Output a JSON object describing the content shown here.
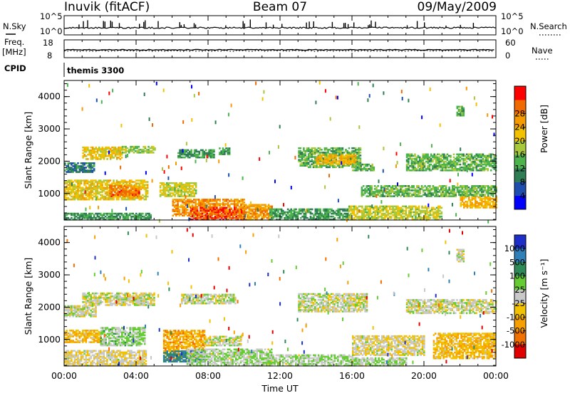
{
  "header": {
    "station": "Inuvik (fitACF)",
    "beam": "Beam 07",
    "date": "09/May/2009"
  },
  "strips": {
    "nsky_label": "N.Sky",
    "nsky_max": "10^5",
    "nsky_min": "10^0",
    "nsearch_label": "N.Search",
    "nsearch_max": "10^5",
    "nsearch_min": "10^0",
    "freq_label": "Freq.",
    "freq_unit": "[MHz]",
    "freq_max": "18",
    "freq_min": "8",
    "nave_label": "Nave",
    "nave_max": "60",
    "nave_min": "0",
    "cpid_label": "CPID",
    "cpid_value": "themis 3300"
  },
  "panels": {
    "power": {
      "ylabel": "Slant Range [km]",
      "yticks": [
        "1000",
        "2000",
        "3000",
        "4000"
      ],
      "colorbar_label": "Power [dB]",
      "colorbar_ticks": [
        "4",
        "8",
        "12",
        "16",
        "20",
        "24",
        "28"
      ],
      "colors": [
        "#0000ff",
        "#1f4fae",
        "#2e7d54",
        "#4db34d",
        "#a8c83c",
        "#f2c200",
        "#f59a00",
        "#f06a00",
        "#ff0000"
      ]
    },
    "velocity": {
      "ylabel": "Slant Range [km]",
      "yticks": [
        "1000",
        "2000",
        "3000",
        "4000"
      ],
      "colorbar_label": "Velocity [m s⁻¹]",
      "colorbar_ticks": [
        "1000",
        "500",
        "100",
        "25",
        "-25",
        "-100",
        "-500",
        "-1000"
      ],
      "colors": [
        "#1e2ec8",
        "#2f7fb8",
        "#2e8b57",
        "#66cc33",
        "#c8c8c8",
        "#f2c200",
        "#f5a000",
        "#f07000",
        "#e00000"
      ]
    }
  },
  "xaxis": {
    "label": "Time UT",
    "ticks": [
      "00:00",
      "04:00",
      "08:00",
      "12:00",
      "16:00",
      "20:00",
      "00:00"
    ]
  },
  "chart_data": [
    {
      "type": "heatmap",
      "title": "Power",
      "xlabel": "Time UT",
      "ylabel": "Slant Range [km]",
      "xlim": [
        0,
        24
      ],
      "ylim": [
        180,
        4500
      ],
      "zlabel": "Power [dB]",
      "zlim": [
        0,
        30
      ],
      "regions": [
        {
          "t": [
            0.0,
            1.7
          ],
          "r": [
            1650,
            1950
          ],
          "z": 8
        },
        {
          "t": [
            1.0,
            3.2
          ],
          "r": [
            2050,
            2450
          ],
          "z": 18
        },
        {
          "t": [
            3.2,
            5.0
          ],
          "r": [
            2250,
            2450
          ],
          "z": 14
        },
        {
          "t": [
            0.0,
            4.6
          ],
          "r": [
            800,
            1400
          ],
          "z": 18
        },
        {
          "t": [
            2.5,
            4.2
          ],
          "r": [
            900,
            1250
          ],
          "z": 24
        },
        {
          "t": [
            0.0,
            4.8
          ],
          "r": [
            180,
            400
          ],
          "z": 10
        },
        {
          "t": [
            5.3,
            7.3
          ],
          "r": [
            900,
            1350
          ],
          "z": 16
        },
        {
          "t": [
            6.0,
            10.0
          ],
          "r": [
            300,
            800
          ],
          "z": 22
        },
        {
          "t": [
            7.0,
            10.0
          ],
          "r": [
            180,
            550
          ],
          "z": 26
        },
        {
          "t": [
            9.7,
            11.5
          ],
          "r": [
            180,
            650
          ],
          "z": 22
        },
        {
          "t": [
            6.3,
            8.3
          ],
          "r": [
            2100,
            2350
          ],
          "z": 10
        },
        {
          "t": [
            8.6,
            9.2
          ],
          "r": [
            2200,
            2400
          ],
          "z": 10
        },
        {
          "t": [
            13.0,
            16.5
          ],
          "r": [
            1800,
            2400
          ],
          "z": 12
        },
        {
          "t": [
            14.0,
            16.2
          ],
          "r": [
            1900,
            2200
          ],
          "z": 20
        },
        {
          "t": [
            16.0,
            17.2
          ],
          "r": [
            1700,
            1900
          ],
          "z": 12
        },
        {
          "t": [
            11.4,
            15.8
          ],
          "r": [
            180,
            500
          ],
          "z": 10
        },
        {
          "t": [
            15.8,
            21.0
          ],
          "r": [
            180,
            600
          ],
          "z": 16
        },
        {
          "t": [
            16.5,
            24.0
          ],
          "r": [
            900,
            1250
          ],
          "z": 12
        },
        {
          "t": [
            19.0,
            24.0
          ],
          "r": [
            1700,
            2200
          ],
          "z": 12
        },
        {
          "t": [
            22.0,
            24.0
          ],
          "r": [
            550,
            900
          ],
          "z": 20
        },
        {
          "t": [
            21.8,
            22.2
          ],
          "r": [
            3400,
            3700
          ],
          "z": 12
        }
      ]
    },
    {
      "type": "heatmap",
      "title": "Velocity",
      "xlabel": "Time UT",
      "ylabel": "Slant Range [km]",
      "xlim": [
        0,
        24
      ],
      "ylim": [
        180,
        4500
      ],
      "zlabel": "Velocity [m s⁻¹]",
      "zlim": [
        -1000,
        1000
      ],
      "regions": [
        {
          "t": [
            0.0,
            1.8
          ],
          "r": [
            1700,
            2050
          ],
          "z": 0
        },
        {
          "t": [
            1.0,
            5.0
          ],
          "r": [
            2050,
            2450
          ],
          "z": 0
        },
        {
          "t": [
            0.0,
            2.0
          ],
          "r": [
            900,
            1300
          ],
          "z": -300
        },
        {
          "t": [
            2.0,
            4.5
          ],
          "r": [
            800,
            1350
          ],
          "z": 150
        },
        {
          "t": [
            0.0,
            4.5
          ],
          "r": [
            180,
            650
          ],
          "z": -100
        },
        {
          "t": [
            5.5,
            7.8
          ],
          "r": [
            400,
            1300
          ],
          "z": -400
        },
        {
          "t": [
            5.5,
            7.8
          ],
          "r": [
            300,
            650
          ],
          "z": 600
        },
        {
          "t": [
            6.8,
            11.5
          ],
          "r": [
            180,
            700
          ],
          "z": 100
        },
        {
          "t": [
            7.8,
            9.8
          ],
          "r": [
            800,
            1100
          ],
          "z": 0
        },
        {
          "t": [
            6.5,
            9.5
          ],
          "r": [
            2100,
            2400
          ],
          "z": 0
        },
        {
          "t": [
            13.0,
            16.8
          ],
          "r": [
            1850,
            2400
          ],
          "z": 0
        },
        {
          "t": [
            11.3,
            16.0
          ],
          "r": [
            180,
            500
          ],
          "z": 100
        },
        {
          "t": [
            16.0,
            20.0
          ],
          "r": [
            500,
            1100
          ],
          "z": -80
        },
        {
          "t": [
            16.0,
            19.0
          ],
          "r": [
            180,
            450
          ],
          "z": 100
        },
        {
          "t": [
            19.0,
            24.0
          ],
          "r": [
            1800,
            2250
          ],
          "z": 0
        },
        {
          "t": [
            20.5,
            24.0
          ],
          "r": [
            400,
            1200
          ],
          "z": -300
        },
        {
          "t": [
            21.8,
            22.2
          ],
          "r": [
            3400,
            3800
          ],
          "z": 0
        }
      ]
    }
  ]
}
